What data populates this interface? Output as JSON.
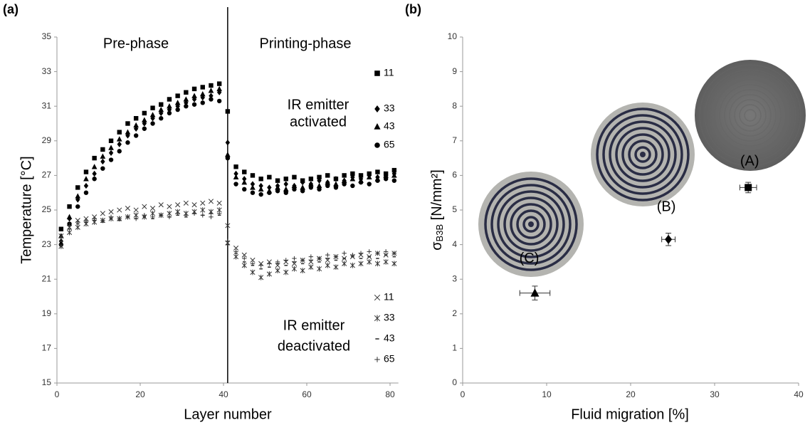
{
  "chart_data": [
    {
      "type": "scatter",
      "panel_label": "(a)",
      "x_label": "Layer number",
      "y_label": "Temperature [°C]",
      "xlim": [
        0,
        82
      ],
      "xticks": [
        0,
        20,
        40,
        60,
        80
      ],
      "ylim": [
        15,
        35
      ],
      "yticks": [
        15,
        17,
        19,
        21,
        23,
        25,
        27,
        29,
        31,
        33,
        35
      ],
      "vline": 41,
      "annotations": [
        "Pre-phase",
        "Printing-phase",
        "IR emitter",
        "activated",
        "IR emitter",
        "deactivated"
      ],
      "x": [
        1,
        3,
        5,
        7,
        9,
        11,
        13,
        15,
        17,
        19,
        21,
        23,
        25,
        27,
        29,
        31,
        33,
        35,
        37,
        39,
        41,
        43,
        45,
        47,
        49,
        51,
        53,
        55,
        57,
        59,
        61,
        63,
        65,
        67,
        69,
        71,
        73,
        75,
        77,
        79,
        81
      ],
      "series": [
        {
          "name": "11",
          "marker": "square",
          "color": "#000000",
          "values": [
            23.9,
            25.2,
            26.3,
            27.2,
            28.0,
            28.5,
            29.0,
            29.5,
            30.0,
            30.3,
            30.6,
            30.9,
            31.1,
            31.4,
            31.6,
            31.8,
            32.0,
            32.1,
            32.2,
            32.3,
            30.7,
            27.5,
            27.2,
            27.0,
            26.8,
            26.9,
            26.7,
            26.8,
            26.9,
            26.7,
            26.8,
            26.9,
            27.0,
            26.8,
            27.0,
            27.1,
            27.0,
            27.1,
            27.2,
            27.1,
            27.3
          ]
        },
        {
          "name": "33",
          "marker": "diamond",
          "color": "#000000",
          "values": [
            23.2,
            24.5,
            25.6,
            26.4,
            27.1,
            27.8,
            28.3,
            28.8,
            29.3,
            29.7,
            30.0,
            30.3,
            30.6,
            30.8,
            31.0,
            31.2,
            31.4,
            31.5,
            31.6,
            31.8,
            28.9,
            27.1,
            26.8,
            26.5,
            26.4,
            26.3,
            26.4,
            26.5,
            26.4,
            26.6,
            26.5,
            26.7,
            26.6,
            26.8,
            26.7,
            26.9,
            26.8,
            27.0,
            26.9,
            27.0,
            27.1
          ]
        },
        {
          "name": "43",
          "marker": "triangle",
          "color": "#000000",
          "values": [
            23.5,
            24.6,
            25.8,
            26.8,
            27.5,
            28.1,
            28.6,
            29.1,
            29.5,
            29.9,
            30.2,
            30.5,
            30.8,
            31.0,
            31.2,
            31.4,
            31.6,
            31.7,
            31.9,
            32.0,
            28.2,
            26.9,
            26.6,
            26.3,
            26.2,
            26.1,
            26.3,
            26.2,
            26.4,
            26.3,
            26.5,
            26.4,
            26.6,
            26.5,
            26.7,
            26.8,
            26.7,
            26.9,
            26.8,
            27.0,
            27.0
          ]
        },
        {
          "name": "65",
          "marker": "circle",
          "color": "#000000",
          "values": [
            23.0,
            24.2,
            25.2,
            26.0,
            26.8,
            27.4,
            27.9,
            28.4,
            28.9,
            29.3,
            29.7,
            30.0,
            30.3,
            30.6,
            30.8,
            31.0,
            31.1,
            31.2,
            31.4,
            31.3,
            28.0,
            26.5,
            26.2,
            26.0,
            25.9,
            26.0,
            26.1,
            26.0,
            26.2,
            26.1,
            26.3,
            26.2,
            26.4,
            26.3,
            26.5,
            26.4,
            26.6,
            26.5,
            26.7,
            26.8,
            26.7
          ]
        },
        {
          "name": "11",
          "marker": "x",
          "color": "#333333",
          "values": [
            23.5,
            24.0,
            24.4,
            24.5,
            24.6,
            24.8,
            24.9,
            25.0,
            25.1,
            25.0,
            25.2,
            25.1,
            25.3,
            25.2,
            25.3,
            25.4,
            25.3,
            25.4,
            25.5,
            25.4,
            24.1,
            22.8,
            22.4,
            22.1,
            21.9,
            22.0,
            21.8,
            22.0,
            21.9,
            22.1,
            22.0,
            22.2,
            22.1,
            22.3,
            22.2,
            22.3,
            22.4,
            22.3,
            22.5,
            22.4,
            22.5
          ]
        },
        {
          "name": "33",
          "marker": "asterisk",
          "color": "#333333",
          "values": [
            22.9,
            23.7,
            24.0,
            24.2,
            24.3,
            24.4,
            24.5,
            24.5,
            24.6,
            24.7,
            24.6,
            24.8,
            24.7,
            24.8,
            24.9,
            24.8,
            24.9,
            25.0,
            24.9,
            25.0,
            23.1,
            22.3,
            21.8,
            21.4,
            21.1,
            21.3,
            21.5,
            21.4,
            21.6,
            21.5,
            21.7,
            21.6,
            21.8,
            21.7,
            21.9,
            21.8,
            21.9,
            22.0,
            21.9,
            22.0,
            21.9
          ]
        },
        {
          "name": "43",
          "marker": "dash",
          "color": "#333333",
          "values": [
            23.2,
            23.9,
            24.2,
            24.3,
            24.4,
            24.3,
            24.5,
            24.4,
            24.6,
            24.5,
            24.6,
            24.5,
            24.7,
            24.6,
            24.7,
            24.6,
            24.8,
            24.7,
            24.8,
            24.7,
            23.0,
            22.5,
            22.0,
            21.8,
            21.6,
            21.7,
            21.9,
            21.8,
            22.0,
            21.9,
            22.1,
            22.0,
            22.2,
            22.1,
            22.2,
            22.3,
            22.2,
            22.3,
            22.2,
            22.4,
            22.3
          ]
        },
        {
          "name": "65",
          "marker": "plus",
          "color": "#333333",
          "values": [
            23.4,
            24.1,
            24.3,
            24.4,
            24.5,
            24.4,
            24.6,
            24.5,
            24.6,
            24.5,
            24.7,
            24.6,
            24.7,
            24.6,
            24.8,
            24.7,
            24.8,
            24.7,
            24.6,
            24.8,
            23.2,
            22.6,
            22.2,
            21.9,
            21.8,
            21.9,
            22.0,
            22.1,
            22.2,
            22.1,
            22.3,
            22.2,
            22.4,
            22.3,
            22.5,
            22.4,
            22.5,
            22.6,
            22.5,
            22.6,
            22.5
          ]
        }
      ]
    },
    {
      "type": "errorbar",
      "panel_label": "(b)",
      "x_label": "Fluid migration [%]",
      "y_label": [
        "σ",
        "B3B",
        " [N/mm²]"
      ],
      "xlim": [
        0,
        40
      ],
      "xticks": [
        0,
        10,
        20,
        30,
        40
      ],
      "ylim": [
        0,
        10
      ],
      "yticks": [
        0,
        1,
        2,
        3,
        4,
        5,
        6,
        7,
        8,
        9,
        10
      ],
      "points": [
        {
          "label": "(C)",
          "marker": "triangle",
          "color": "#000000",
          "x": 8.6,
          "y": 2.6,
          "xerr": 1.8,
          "yerr": 0.2
        },
        {
          "label": "(B)",
          "marker": "diamond",
          "color": "#000000",
          "x": 24.5,
          "y": 4.15,
          "xerr": 0.8,
          "yerr": 0.18
        },
        {
          "label": "(A)",
          "marker": "square",
          "color": "#000000",
          "x": 34,
          "y": 5.65,
          "xerr": 1.0,
          "yerr": 0.15
        }
      ]
    }
  ]
}
